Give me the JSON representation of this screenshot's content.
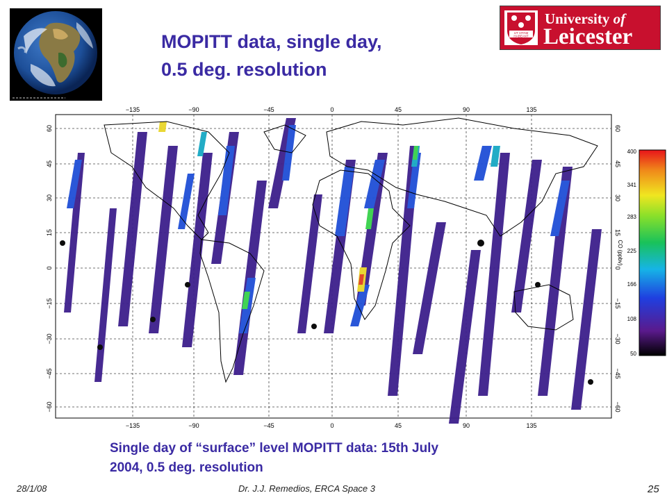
{
  "slide": {
    "title_line1": "MOPITT data, single day,",
    "title_line2": "0.5 deg. resolution",
    "caption_line1": "Single day of “surface” level  MOPITT data: 15th July",
    "caption_line2": "2004, 0.5 deg. resolution",
    "footer_date": "28/1/08",
    "footer_author": "Dr. J.J. Remedios, ERCA Space 3",
    "page_number": "25"
  },
  "logo": {
    "line1": "University",
    "line1_of": "of",
    "line2": "Leicester",
    "motto1": "UT VITAM",
    "motto2": "HABEANT"
  },
  "map": {
    "lon_ticks": [
      "−135",
      "−90",
      "−45",
      "0",
      "45",
      "90",
      "135"
    ],
    "lat_ticks": [
      "60",
      "45",
      "30",
      "15",
      "0",
      "−15",
      "−30",
      "−45",
      "−60"
    ],
    "colorbar_label": "CO (ppbv)",
    "colorbar_ticks": [
      "400",
      "341",
      "283",
      "225",
      "166",
      "108",
      "50"
    ]
  },
  "colors": {
    "title": "#3a2aa3",
    "logo_red": "#c8102e"
  }
}
